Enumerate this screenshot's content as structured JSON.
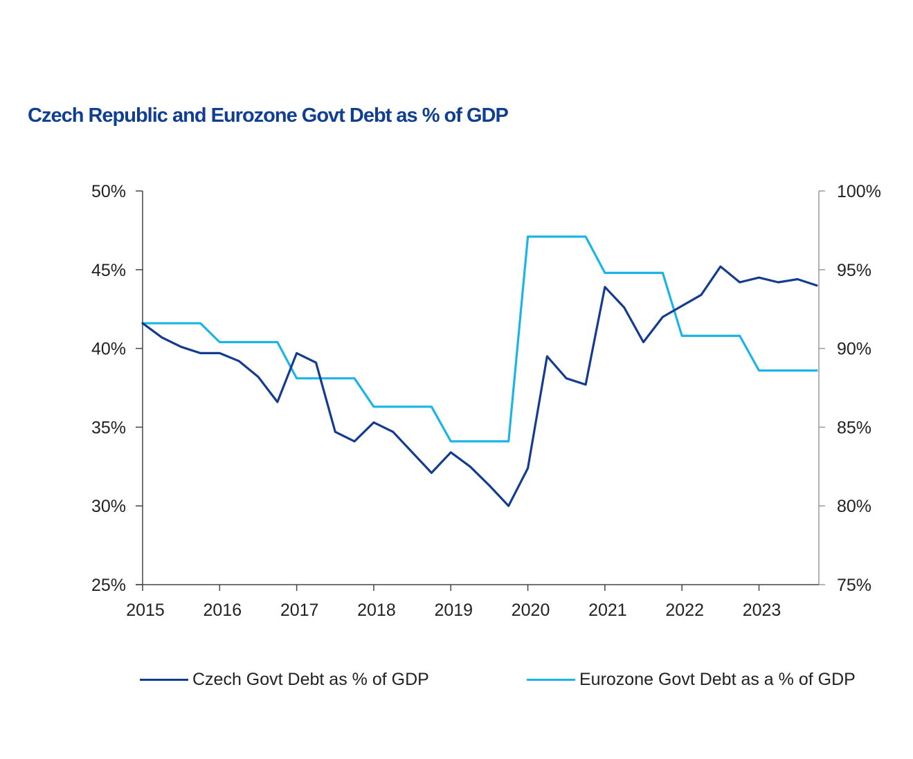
{
  "chart_data": {
    "type": "line",
    "title": "Czech Republic and Eurozone Govt Debt as % of GDP",
    "xlabel": "",
    "ylabel_left": "",
    "ylabel_right": "",
    "x_ticks": [
      "2015",
      "2016",
      "2017",
      "2018",
      "2019",
      "2020",
      "2021",
      "2022",
      "2023"
    ],
    "x_range": [
      2015.0,
      2023.75
    ],
    "x": [
      2015.0,
      2015.25,
      2015.5,
      2015.75,
      2016.0,
      2016.25,
      2016.5,
      2016.75,
      2017.0,
      2017.25,
      2017.5,
      2017.75,
      2018.0,
      2018.25,
      2018.5,
      2018.75,
      2019.0,
      2019.25,
      2019.5,
      2019.75,
      2020.0,
      2020.25,
      2020.5,
      2020.75,
      2021.0,
      2021.25,
      2021.5,
      2021.75,
      2022.0,
      2022.25,
      2022.5,
      2022.75,
      2023.0,
      2023.25,
      2023.5,
      2023.75
    ],
    "y_left": {
      "range": [
        25,
        50
      ],
      "ticks": [
        25,
        30,
        35,
        40,
        45,
        50
      ],
      "tick_labels": [
        "25%",
        "30%",
        "35%",
        "40%",
        "45%",
        "50%"
      ]
    },
    "y_right": {
      "range": [
        75,
        100
      ],
      "ticks": [
        75,
        80,
        85,
        90,
        95,
        100
      ],
      "tick_labels": [
        "75%",
        "80%",
        "85%",
        "90%",
        "95%",
        "100%"
      ]
    },
    "grid": false,
    "legend_position": "bottom",
    "series": [
      {
        "name": "Czech Govt Debt as % of GDP",
        "axis": "left",
        "color": "#133b8f",
        "values": [
          41.6,
          40.7,
          40.1,
          39.7,
          39.7,
          39.2,
          38.2,
          36.6,
          39.7,
          39.1,
          34.7,
          34.1,
          35.3,
          34.7,
          33.4,
          32.1,
          33.4,
          32.5,
          31.3,
          30.0,
          32.4,
          39.5,
          38.1,
          37.7,
          43.9,
          42.6,
          40.4,
          42.0,
          42.7,
          43.4,
          45.2,
          44.2,
          44.5,
          44.2,
          44.4,
          44.0
        ]
      },
      {
        "name": "Eurozone Govt Debt as a % of GDP",
        "axis": "right",
        "color": "#1ab4e8",
        "values": [
          91.6,
          91.6,
          91.6,
          91.6,
          90.4,
          90.4,
          90.4,
          90.4,
          88.1,
          88.1,
          88.1,
          88.1,
          86.3,
          86.3,
          86.3,
          86.3,
          84.1,
          84.1,
          84.1,
          84.1,
          97.1,
          97.1,
          97.1,
          97.1,
          94.8,
          94.8,
          94.8,
          94.8,
          90.8,
          90.8,
          90.8,
          90.8,
          88.6,
          88.6,
          88.6,
          88.6
        ]
      }
    ]
  }
}
